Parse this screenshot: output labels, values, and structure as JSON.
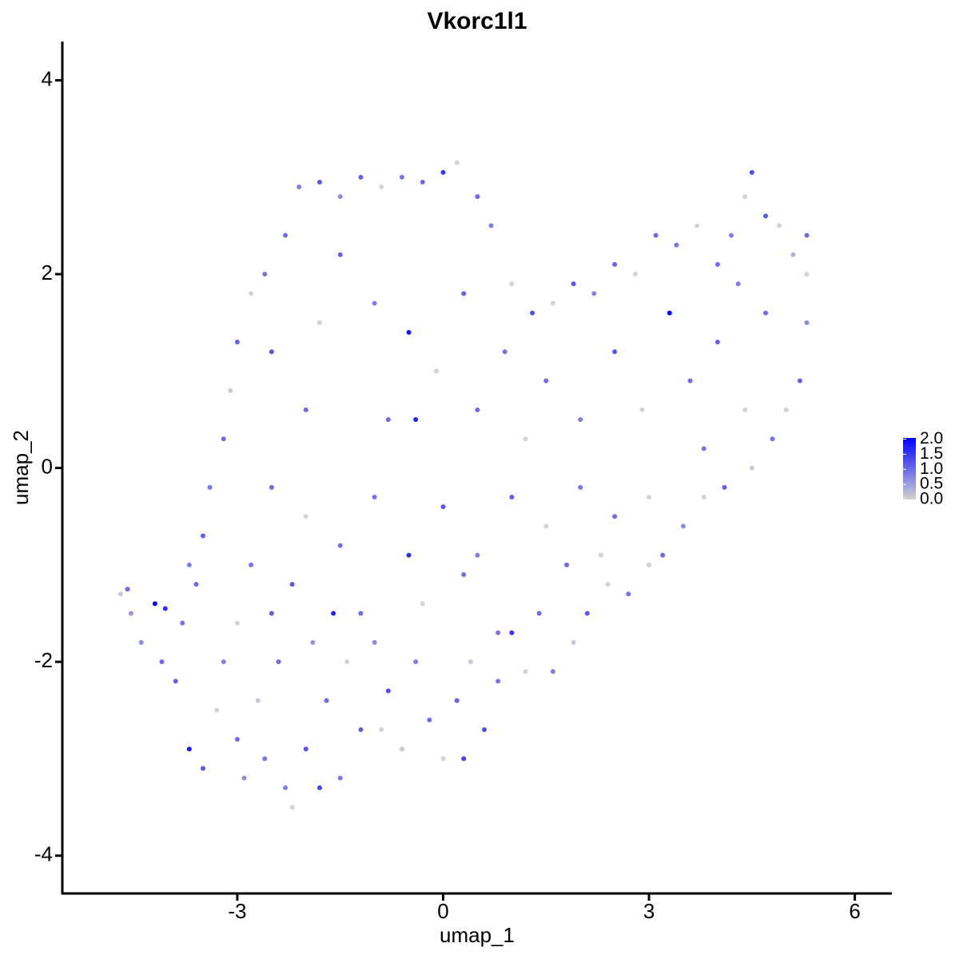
{
  "chart_data": {
    "type": "scatter",
    "title": "Vkorc1l1",
    "x_label": "umap_1",
    "y_label": "umap_2",
    "xlim": [
      -5.55,
      6.54
    ],
    "ylim": [
      -4.39,
      4.4
    ],
    "xticks": [
      -3,
      0,
      3,
      6
    ],
    "yticks": [
      -4,
      -2,
      0,
      2,
      4
    ],
    "color_low": "#d3d3d3",
    "color_high": "#0000ff",
    "clim": [
      0,
      2.04
    ],
    "colorbar_ticks": [
      {
        "value": 0,
        "label": "0.0"
      },
      {
        "value": 0.5,
        "label": "0.5"
      },
      {
        "value": 1,
        "label": "1.0"
      },
      {
        "value": 1.5,
        "label": "1.5"
      },
      {
        "value": 2,
        "label": "2.0"
      }
    ],
    "x": [
      -4.7,
      -4.6,
      -4.55,
      -4.4,
      -4.2,
      -4.05,
      -4.1,
      -3.9,
      -3.7,
      -3.5,
      -3.8,
      -3.6,
      -3.3,
      -3.2,
      -3.0,
      -2.9,
      -2.7,
      -2.6,
      -2.5,
      -2.3,
      -2.2,
      -2.0,
      -1.8,
      -1.9,
      -1.7,
      -1.5,
      -1.4,
      -1.2,
      -1.0,
      -0.8,
      -0.6,
      -0.4,
      -0.2,
      0.0,
      0.2,
      0.4,
      0.6,
      0.8,
      1.0,
      1.2,
      1.4,
      1.6,
      1.9,
      2.1,
      2.4,
      2.7,
      3.0,
      3.2,
      3.5,
      3.8,
      4.1,
      4.5,
      4.8,
      5.0,
      5.2,
      5.3,
      5.3,
      5.3,
      5.1,
      4.9,
      4.7,
      4.5,
      4.4,
      4.2,
      4.0,
      3.7,
      3.4,
      3.1,
      2.8,
      2.5,
      2.2,
      1.9,
      1.6,
      1.3,
      1.0,
      0.7,
      0.5,
      0.2,
      0.0,
      -0.3,
      -0.6,
      -0.9,
      -1.2,
      -1.5,
      -1.8,
      -2.1,
      -2.3,
      -2.6,
      -2.8,
      -3.0,
      -3.1,
      -3.2,
      -3.4,
      -3.5,
      -3.7,
      -2.5,
      -2.0,
      -1.8,
      -1.5,
      -1.0,
      -0.5,
      -0.8,
      -0.4,
      -0.1,
      0.3,
      0.5,
      0.9,
      1.2,
      1.5,
      2.0,
      2.5,
      2.9,
      3.3,
      3.6,
      4.0,
      4.4,
      4.7,
      4.3,
      3.8,
      3.0,
      2.5,
      2.0,
      1.5,
      1.0,
      0.5,
      0.0,
      -0.5,
      -1.0,
      -1.5,
      -2.0,
      -2.5,
      -2.8,
      -2.2,
      -1.2,
      -0.3,
      0.3,
      0.8,
      1.8,
      2.3,
      -1.6,
      -2.4,
      -3.0,
      -0.9,
      0.3
    ],
    "y": [
      -1.3,
      -1.25,
      -1.5,
      -1.8,
      -1.4,
      -1.45,
      -2.0,
      -2.2,
      -2.9,
      -3.1,
      -1.6,
      -1.2,
      -2.5,
      -2.0,
      -2.8,
      -3.2,
      -2.4,
      -3.0,
      -1.5,
      -3.3,
      -3.5,
      -2.9,
      -3.3,
      -1.8,
      -2.4,
      -3.2,
      -2.0,
      -2.7,
      -1.8,
      -2.3,
      -2.9,
      -2.0,
      -2.6,
      -3.0,
      -2.4,
      -2.0,
      -2.7,
      -2.2,
      -1.7,
      -2.1,
      -1.5,
      -2.1,
      -1.8,
      -1.5,
      -1.2,
      -1.3,
      -1.0,
      -0.9,
      -0.6,
      -0.3,
      -0.2,
      0.0,
      0.3,
      0.6,
      0.9,
      1.5,
      2.0,
      2.4,
      2.2,
      2.5,
      2.6,
      3.05,
      2.8,
      2.4,
      2.1,
      2.5,
      2.3,
      2.4,
      2.0,
      2.1,
      1.8,
      1.9,
      1.7,
      1.6,
      1.9,
      2.5,
      2.8,
      3.15,
      3.05,
      2.95,
      3.0,
      2.9,
      3.0,
      2.8,
      2.95,
      2.9,
      2.4,
      2.0,
      1.8,
      1.3,
      0.8,
      0.3,
      -0.2,
      -0.7,
      -1.0,
      1.2,
      0.6,
      1.5,
      2.2,
      1.7,
      1.4,
      0.5,
      0.5,
      1.0,
      1.8,
      0.6,
      1.2,
      0.3,
      0.9,
      0.5,
      1.2,
      0.6,
      1.6,
      0.9,
      1.3,
      0.6,
      1.6,
      1.9,
      0.2,
      -0.3,
      -0.5,
      -0.2,
      -0.6,
      -0.3,
      -0.9,
      -0.4,
      -0.9,
      -0.3,
      -0.8,
      -0.5,
      -0.2,
      -1.0,
      -1.2,
      -1.5,
      -1.4,
      -1.1,
      -1.7,
      -1.0,
      -0.9,
      -1.5,
      -2.0,
      -1.6,
      -2.7,
      -3.0
    ],
    "values": [
      0.1,
      1.0,
      0.6,
      0.7,
      2.0,
      1.6,
      1.0,
      1.1,
      1.8,
      1.2,
      0.9,
      1.0,
      0.0,
      0.8,
      1.0,
      0.7,
      0.1,
      0.9,
      1.1,
      0.8,
      0.0,
      1.2,
      1.4,
      0.6,
      1.0,
      0.9,
      0.0,
      1.1,
      0.7,
      1.3,
      0.1,
      0.8,
      1.0,
      0.0,
      1.1,
      0.1,
      1.3,
      0.9,
      1.5,
      0.0,
      1.0,
      0.8,
      0.1,
      1.2,
      0.0,
      0.9,
      0.0,
      1.0,
      0.7,
      0.0,
      1.1,
      0.1,
      0.9,
      0.0,
      1.1,
      0.7,
      0.0,
      1.0,
      0.3,
      0.0,
      1.2,
      1.3,
      0.0,
      0.8,
      1.0,
      0.0,
      0.9,
      1.0,
      0.0,
      1.1,
      0.8,
      1.2,
      0.0,
      1.3,
      0.0,
      0.8,
      1.0,
      0.0,
      1.5,
      1.0,
      0.9,
      0.0,
      1.1,
      0.7,
      1.2,
      0.8,
      1.0,
      0.9,
      0.0,
      1.1,
      0.1,
      1.0,
      0.9,
      1.1,
      0.8,
      1.2,
      1.0,
      0.0,
      1.1,
      0.8,
      1.8,
      1.0,
      1.7,
      0.0,
      1.1,
      1.0,
      0.9,
      0.0,
      1.0,
      0.8,
      1.2,
      0.0,
      2.0,
      1.0,
      1.1,
      0.0,
      1.0,
      0.8,
      0.9,
      0.0,
      1.0,
      0.9,
      0.0,
      1.1,
      0.8,
      1.2,
      1.6,
      0.9,
      1.0,
      0.0,
      1.0,
      0.9,
      1.2,
      1.0,
      0.0,
      1.0,
      0.9,
      1.0,
      0.0,
      1.7,
      1.0,
      0.0,
      0.0,
      1.4
    ]
  }
}
